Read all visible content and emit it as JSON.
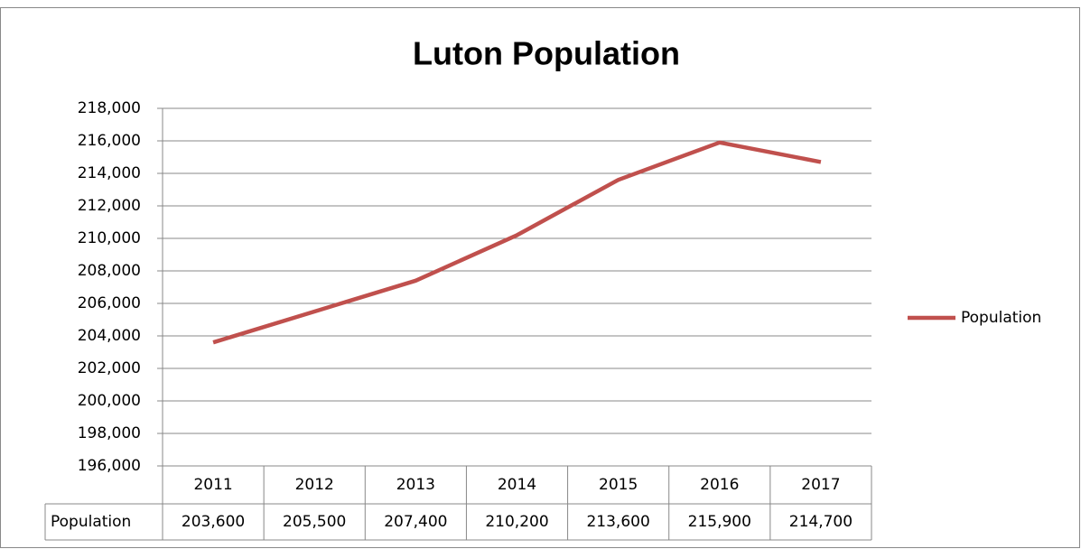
{
  "chart_data": {
    "type": "line",
    "title": "Luton Population",
    "categories": [
      "2011",
      "2012",
      "2013",
      "2014",
      "2015",
      "2016",
      "2017"
    ],
    "series": [
      {
        "name": "Population",
        "color": "#c0504d",
        "values": [
          203600,
          205500,
          207400,
          210200,
          213600,
          215900,
          214700
        ],
        "value_labels": [
          "203,600",
          "205,500",
          "207,400",
          "210,200",
          "213,600",
          "215,900",
          "214,700"
        ]
      }
    ],
    "ylim": [
      196000,
      218000
    ],
    "yticks": [
      {
        "value": 196000,
        "label": "196,000"
      },
      {
        "value": 198000,
        "label": "198,000"
      },
      {
        "value": 200000,
        "label": "200,000"
      },
      {
        "value": 202000,
        "label": "202,000"
      },
      {
        "value": 204000,
        "label": "204,000"
      },
      {
        "value": 206000,
        "label": "206,000"
      },
      {
        "value": 208000,
        "label": "208,000"
      },
      {
        "value": 210000,
        "label": "210,000"
      },
      {
        "value": 212000,
        "label": "212,000"
      },
      {
        "value": 214000,
        "label": "214,000"
      },
      {
        "value": 216000,
        "label": "216,000"
      },
      {
        "value": 218000,
        "label": "218,000"
      }
    ],
    "grid": true,
    "legend": "right",
    "data_table": true
  }
}
